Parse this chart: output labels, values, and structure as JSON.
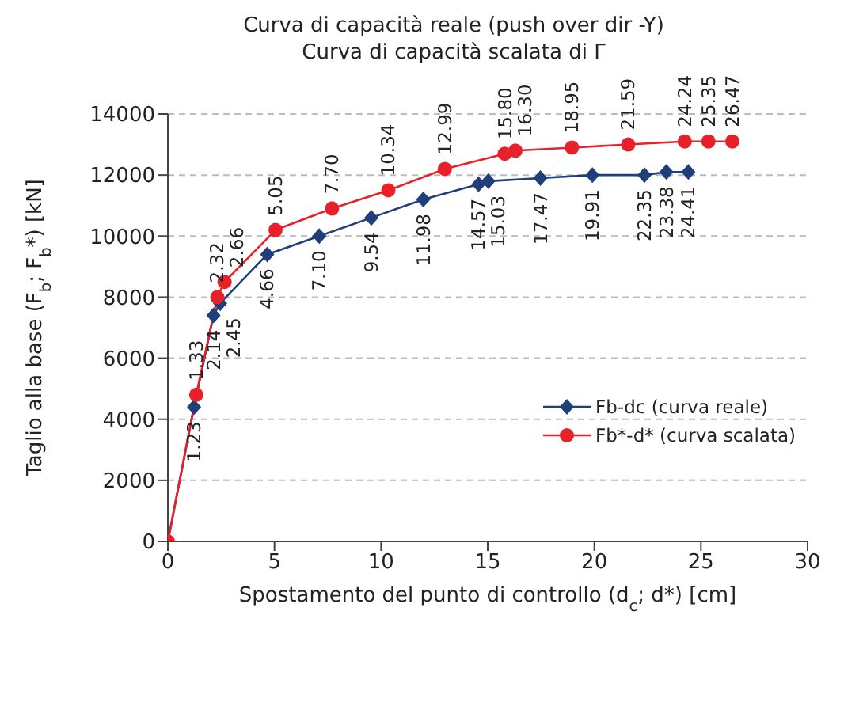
{
  "chart_data": {
    "type": "line",
    "title": "Curva di capacità reale (push over dir -Y)",
    "subtitle": "Curva di capacità scalata di Γ",
    "xlabel": "Spostamento del punto di controllo (d$_{c}$; d*) [cm]",
    "ylabel": "Taglio alla base (F$_{b}$; F$_{b}$*) [kN]",
    "xlim": [
      0,
      30
    ],
    "xticks": [
      0,
      5,
      10,
      15,
      20,
      25,
      30
    ],
    "ylim": [
      0,
      14000
    ],
    "yticks": [
      0,
      2000,
      4000,
      6000,
      8000,
      10000,
      12000,
      14000
    ],
    "grid": "y",
    "legend": "right",
    "line_style": "solid",
    "series": [
      {
        "name": "Fb-dc (curva reale)",
        "color": "#1f3f7a",
        "marker": "diamond",
        "x": [
          0,
          1.23,
          2.14,
          2.45,
          4.66,
          7.1,
          9.54,
          11.98,
          14.57,
          15.03,
          17.47,
          19.91,
          22.35,
          23.38,
          24.41
        ],
        "values": [
          0,
          4400,
          7400,
          7800,
          9400,
          10000,
          10600,
          11200,
          11700,
          11800,
          11900,
          12000,
          12000,
          12100,
          12100
        ]
      },
      {
        "name": "Fb*-d* (curva scalata)",
        "color": "#e8202a",
        "marker": "circle",
        "x": [
          0,
          1.33,
          2.32,
          2.66,
          5.05,
          7.7,
          10.34,
          12.99,
          15.8,
          16.3,
          18.95,
          21.59,
          24.24,
          25.35,
          26.47
        ],
        "values": [
          0,
          4800,
          8000,
          8500,
          10200,
          10900,
          11500,
          12200,
          12700,
          12800,
          12900,
          13000,
          13100,
          13100,
          13100
        ]
      }
    ],
    "annotations": [
      {
        "text": "1.23",
        "x": 1.23,
        "y": 4400
      },
      {
        "text": "2.14",
        "x": 2.14,
        "y": 7400
      },
      {
        "text": "2.45",
        "x": 2.45,
        "y": 7800
      },
      {
        "text": "4.66",
        "x": 4.66,
        "y": 9400
      },
      {
        "text": "7.10",
        "x": 7.1,
        "y": 10000
      },
      {
        "text": "9.54",
        "x": 9.54,
        "y": 10600
      },
      {
        "text": "11.98",
        "x": 11.98,
        "y": 11200
      },
      {
        "text": "14.57",
        "x": 14.57,
        "y": 11700
      },
      {
        "text": "15.03",
        "x": 15.03,
        "y": 11800
      },
      {
        "text": "17.47",
        "x": 17.47,
        "y": 11900
      },
      {
        "text": "19.91",
        "x": 19.91,
        "y": 12000
      },
      {
        "text": "22.35",
        "x": 22.35,
        "y": 12000
      },
      {
        "text": "23.38",
        "x": 23.38,
        "y": 12100
      },
      {
        "text": "24.41",
        "x": 24.41,
        "y": 12100
      },
      {
        "text": "1.33",
        "x": 1.33,
        "y": 4800
      },
      {
        "text": "2.32",
        "x": 2.32,
        "y": 8000
      },
      {
        "text": "2.66",
        "x": 2.66,
        "y": 8500
      },
      {
        "text": "5.05",
        "x": 5.05,
        "y": 10200
      },
      {
        "text": "7.70",
        "x": 7.7,
        "y": 10900
      },
      {
        "text": "10.34",
        "x": 10.34,
        "y": 11500
      },
      {
        "text": "12.99",
        "x": 12.99,
        "y": 12200
      },
      {
        "text": "15.80",
        "x": 15.8,
        "y": 12700
      },
      {
        "text": "16.30",
        "x": 16.3,
        "y": 12800
      },
      {
        "text": "18.95",
        "x": 18.95,
        "y": 12900
      },
      {
        "text": "21.59",
        "x": 21.59,
        "y": 13000
      },
      {
        "text": "24.24",
        "x": 24.24,
        "y": 13100
      },
      {
        "text": "25.35",
        "x": 25.35,
        "y": 13100
      },
      {
        "text": "26.47",
        "x": 26.47,
        "y": 13100
      }
    ]
  }
}
